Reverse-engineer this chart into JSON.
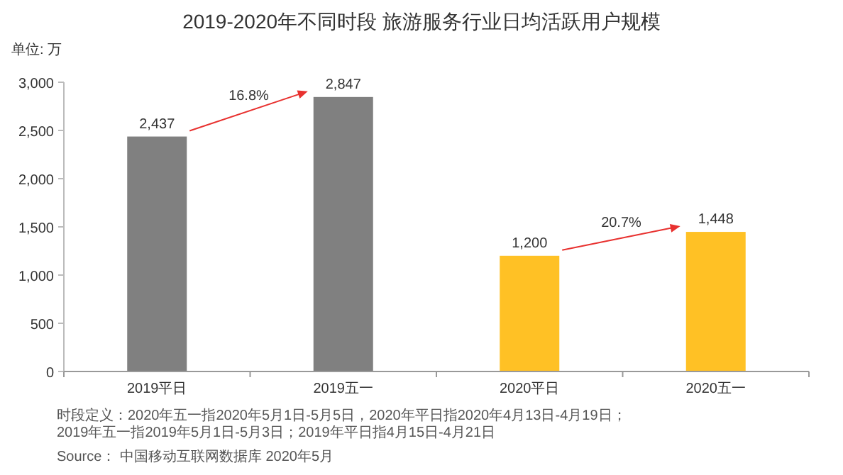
{
  "chart_data": {
    "type": "bar",
    "title": "2019-2020年不同时段 旅游服务行业日均活跃用户规模",
    "ylabel": "单位: 万",
    "categories": [
      "2019平日",
      "2019五一",
      "2020平日",
      "2020五一"
    ],
    "values": [
      2437,
      2847,
      1200,
      1448
    ],
    "colors": [
      "#808080",
      "#808080",
      "#ffc125",
      "#ffc125"
    ],
    "ylim": [
      0,
      3000
    ],
    "yticks": [
      {
        "value": 0,
        "label": "0"
      },
      {
        "value": 500,
        "label": "500"
      },
      {
        "value": 1000,
        "label": "1,000"
      },
      {
        "value": 1500,
        "label": "1,500"
      },
      {
        "value": 2000,
        "label": "2,000"
      },
      {
        "value": 2500,
        "label": "2,500"
      },
      {
        "value": 3000,
        "label": "3,000"
      }
    ],
    "value_labels": [
      "2,437",
      "2,847",
      "1,200",
      "1,448"
    ],
    "grid": false,
    "annotations": [
      "16.8%",
      "20.7%",
      "时段定义：2020年五一指2020年5月1日-5月5日，2020年平日指2020年4月13日-4月19日；\n2019年五一指2019年5月1日-5月3日；2019年平日指4月15日-4月21日",
      "Source： 中国移动互联网数据库 2020年5月"
    ]
  }
}
